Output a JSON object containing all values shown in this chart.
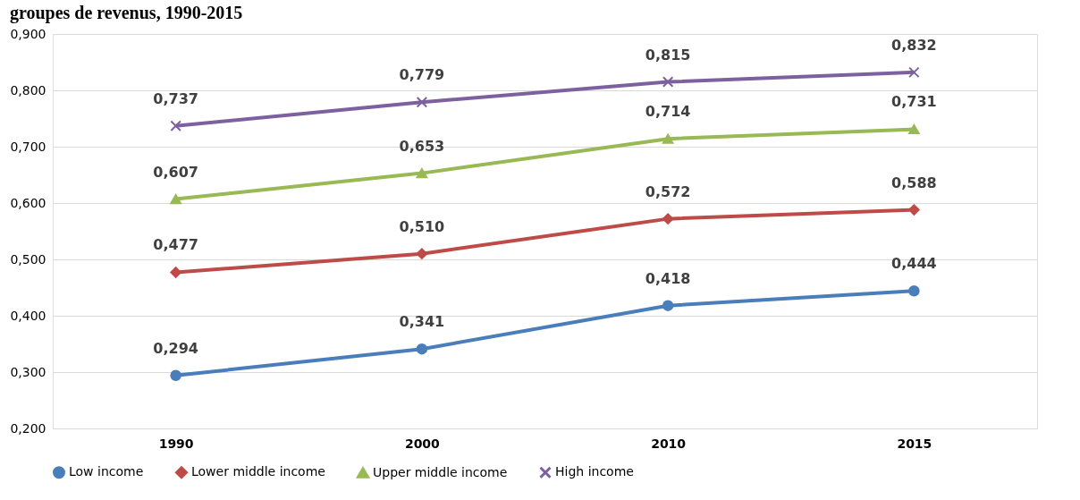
{
  "chart_data": {
    "type": "line",
    "title": "groupes de revenus, 1990-2015",
    "categories": [
      "1990",
      "2000",
      "2010",
      "2015"
    ],
    "series": [
      {
        "name": "Low income",
        "color": "#4a7ebb",
        "marker": "circle",
        "values": [
          0.294,
          0.341,
          0.418,
          0.444
        ],
        "value_labels": [
          "0,294",
          "0,341",
          "0,418",
          "0,444"
        ]
      },
      {
        "name": "Lower middle income",
        "color": "#be4b48",
        "marker": "diamond",
        "values": [
          0.477,
          0.51,
          0.572,
          0.588
        ],
        "value_labels": [
          "0,477",
          "0,510",
          "0,572",
          "0,588"
        ]
      },
      {
        "name": "Upper middle income",
        "color": "#98b954",
        "marker": "triangle",
        "values": [
          0.607,
          0.653,
          0.714,
          0.731
        ],
        "value_labels": [
          "0,607",
          "0,653",
          "0,714",
          "0,731"
        ]
      },
      {
        "name": "High income",
        "color": "#7d60a0",
        "marker": "cross",
        "values": [
          0.737,
          0.779,
          0.815,
          0.832
        ],
        "value_labels": [
          "0,737",
          "0,779",
          "0,815",
          "0,832"
        ]
      }
    ],
    "ylim": [
      0.2,
      0.9
    ],
    "yticks": [
      {
        "value": 0.2,
        "label": "0,200"
      },
      {
        "value": 0.3,
        "label": "0,300"
      },
      {
        "value": 0.4,
        "label": "0,400"
      },
      {
        "value": 0.5,
        "label": "0,500"
      },
      {
        "value": 0.6,
        "label": "0,600"
      },
      {
        "value": 0.7,
        "label": "0,700"
      },
      {
        "value": 0.8,
        "label": "0,800"
      },
      {
        "value": 0.9,
        "label": "0,900"
      }
    ],
    "grid": "y",
    "legend": "bottom",
    "line_style": "solid"
  }
}
